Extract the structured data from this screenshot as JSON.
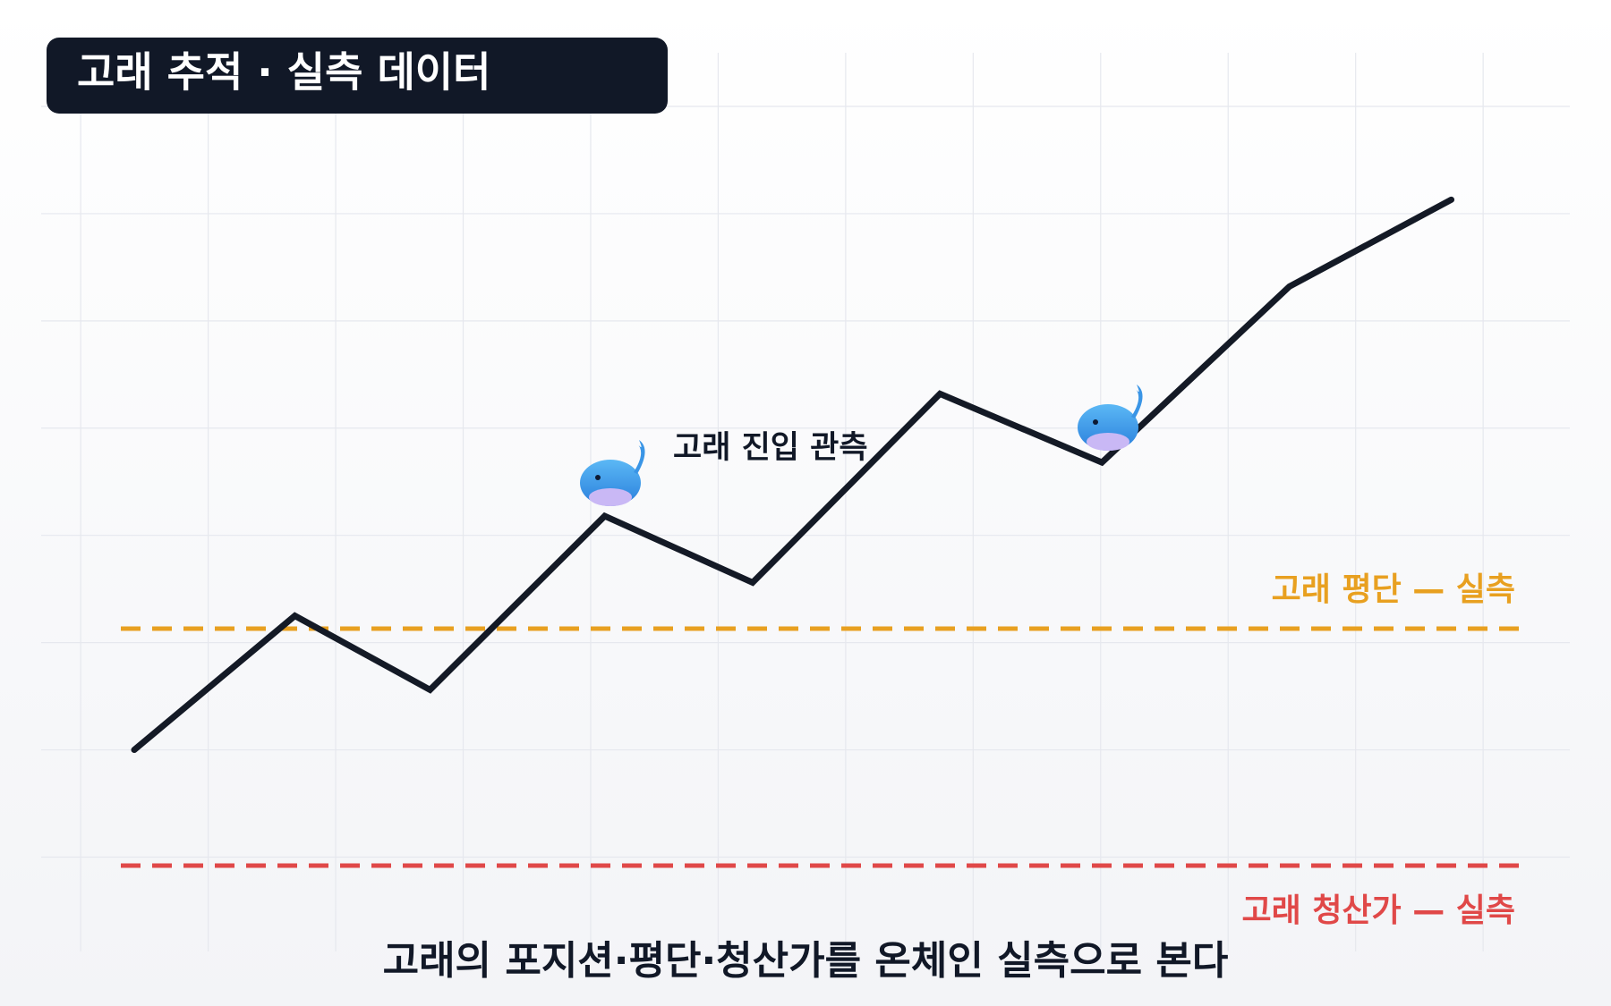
{
  "chart_data": {
    "type": "line",
    "title": "고래 추적 · 실측 데이터",
    "subtitle": "고래의 포지션·평단·청산가를 온체인 실측으로 본다",
    "x": [
      0.42,
      1.68,
      2.74,
      4.11,
      5.27,
      6.74,
      8.01,
      9.48,
      10.75
    ],
    "series": [
      {
        "color": "#141a26",
        "values": [
          1.0,
          2.25,
          1.56,
          3.18,
          2.56,
          4.32,
          3.68,
          5.32,
          6.13
        ]
      }
    ],
    "xlim": [
      -0.31,
      11.68
    ],
    "xticks": [
      0,
      1,
      2,
      3,
      4,
      5,
      6,
      7,
      8,
      9,
      10,
      11
    ],
    "ylim": [
      -0.88,
      7
    ],
    "yticks": [
      0,
      1,
      2,
      3,
      4,
      5,
      6,
      7
    ],
    "grid": true,
    "annotations": [
      {
        "text": "고래 진입 관측"
      }
    ],
    "reference_lines": [
      {
        "label": "고래 평단 — 실측",
        "value": 2.13,
        "color": "#e8a020"
      },
      {
        "label": "고래 청산가 — 실측",
        "value": -0.08,
        "color": "#e04848"
      }
    ]
  }
}
